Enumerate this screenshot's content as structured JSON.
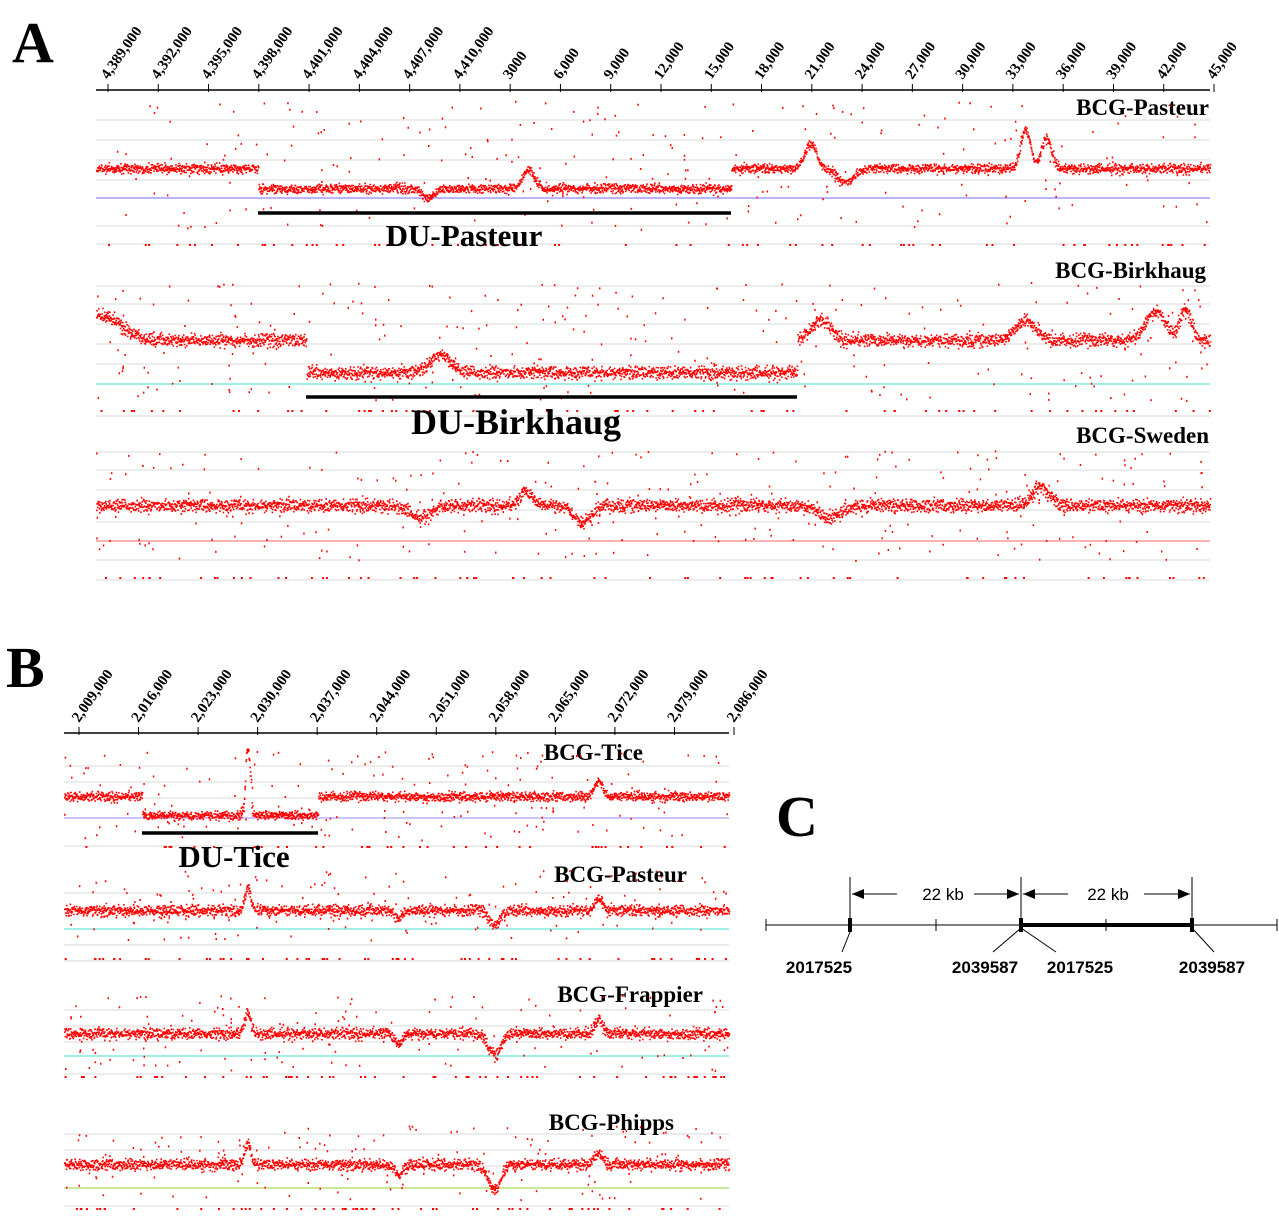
{
  "figure": {
    "colors": {
      "signal": "#ff0000",
      "axis": "#000000",
      "gridline": "#d9d9d9",
      "text": "#000000"
    },
    "panels": {
      "A": {
        "label": "A",
        "ticks": [
          "4,389,000",
          "4,392,000",
          "4,395,000",
          "4,398,000",
          "4,401,000",
          "4,404,000",
          "4,407,000",
          "4,410,000",
          "3000",
          "6,000",
          "9,000",
          "12,000",
          "15,000",
          "18,000",
          "21,000",
          "24,000",
          "27,000",
          "30,000",
          "33,000",
          "36,000",
          "39,000",
          "42,000",
          "45,000"
        ],
        "tracks": [
          {
            "strain": "BCG-Pasteur",
            "baseline_color": "#7b68ee",
            "duplication": {
              "label": "DU-Pasteur",
              "start": "4,397,500",
              "end": "16,000"
            }
          },
          {
            "strain": "BCG-Birkhaug",
            "baseline_color": "#40e0d0",
            "duplication": {
              "label": "DU-Birkhaug",
              "start": "4,400,000",
              "end": "20,000"
            }
          },
          {
            "strain": "BCG-Sweden",
            "baseline_color": "#ff6666",
            "duplication": null
          }
        ]
      },
      "B": {
        "label": "B",
        "ticks": [
          "2,009,000",
          "2,016,000",
          "2,023,000",
          "2,030,000",
          "2,037,000",
          "2,044,000",
          "2,051,000",
          "2,058,000",
          "2,065,000",
          "2,072,000",
          "2,079,000",
          "2,086,000"
        ],
        "tracks": [
          {
            "strain": "BCG-Tice",
            "baseline_color": "#9a8cf0",
            "duplication": {
              "label": "DU-Tice",
              "start": "2,017,525",
              "end": "2,039,587"
            }
          },
          {
            "strain": "BCG-Pasteur",
            "baseline_color": "#40e0d0",
            "duplication": null
          },
          {
            "strain": "BCG-Frappier",
            "baseline_color": "#40e0d0",
            "duplication": null
          },
          {
            "strain": "BCG-Phipps",
            "baseline_color": "#9acd32",
            "duplication": null
          }
        ]
      },
      "C": {
        "label": "C",
        "spans": [
          "22 kb",
          "22 kb"
        ],
        "coordinates": [
          "2017525",
          "2039587",
          "2017525",
          "2039587"
        ]
      }
    }
  }
}
